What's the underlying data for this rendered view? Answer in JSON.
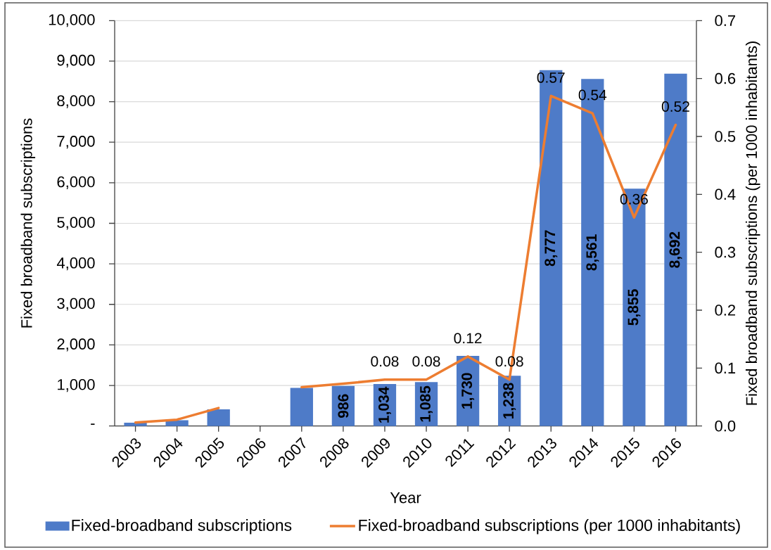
{
  "chart_data": {
    "type": "bar",
    "xlabel": "Year",
    "ylabel": "Fixed broadband subscriptions",
    "y2label": "Fixed broadband subscriptions (per 1000 inhabitants)",
    "categories": [
      "2003",
      "2004",
      "2005",
      "2006",
      "2007",
      "2008",
      "2009",
      "2010",
      "2011",
      "2012",
      "2013",
      "2014",
      "2015",
      "2016"
    ],
    "series": [
      {
        "name": "Fixed-broadband subscriptions",
        "color": "#4e7bc8",
        "values": [
          80,
          140,
          410,
          null,
          940,
          986,
          1034,
          1085,
          1730,
          1238,
          8777,
          8561,
          5855,
          8692
        ],
        "value_labels": [
          null,
          null,
          null,
          null,
          null,
          "986",
          "1,034",
          "1,085",
          "1,730",
          "1,238",
          "8,777",
          "8,561",
          "5,855",
          "8,692"
        ]
      },
      {
        "name": "Fixed-broadband subscriptions (per 1000 inhabitants)",
        "type": "line",
        "axis": "y2",
        "color": "#ed7d31",
        "line_style": "solid",
        "values": [
          0.006,
          0.011,
          0.031,
          null,
          0.067,
          0.073,
          0.08,
          0.08,
          0.12,
          0.08,
          0.57,
          0.54,
          0.36,
          0.52
        ],
        "value_labels": [
          null,
          null,
          null,
          null,
          null,
          null,
          "0.08",
          "0.08",
          "0.12",
          "0.08",
          "0.57",
          "0.54",
          "0.36",
          "0.52"
        ]
      }
    ],
    "ylim": [
      0,
      10000
    ],
    "yticks": [
      {
        "value": 0,
        "label": "-"
      },
      {
        "value": 1000,
        "label": "1,000"
      },
      {
        "value": 2000,
        "label": "2,000"
      },
      {
        "value": 3000,
        "label": "3,000"
      },
      {
        "value": 4000,
        "label": "4,000"
      },
      {
        "value": 5000,
        "label": "5,000"
      },
      {
        "value": 6000,
        "label": "6,000"
      },
      {
        "value": 7000,
        "label": "7,000"
      },
      {
        "value": 8000,
        "label": "8,000"
      },
      {
        "value": 9000,
        "label": "9,000"
      },
      {
        "value": 10000,
        "label": "10,000"
      }
    ],
    "y2lim": [
      0,
      0.7
    ],
    "y2ticks": [
      {
        "value": 0,
        "label": "0.0"
      },
      0.1,
      0.2,
      0.3,
      0.4,
      0.5,
      0.6,
      0.7
    ],
    "grid": "y",
    "legend": "bottom"
  }
}
